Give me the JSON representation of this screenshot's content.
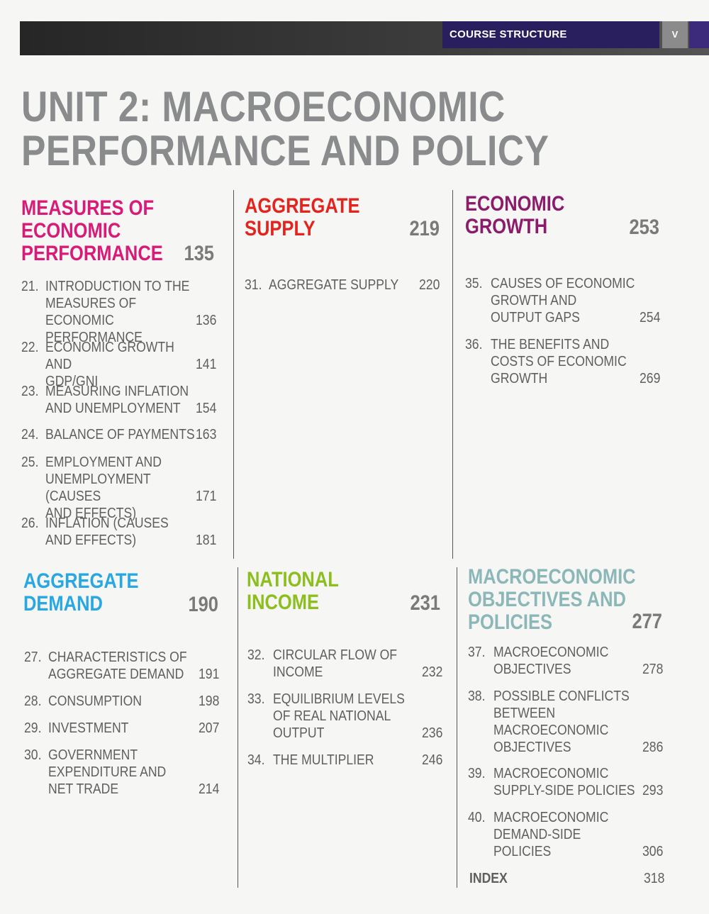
{
  "header": {
    "section_label": "COURSE STRUCTURE",
    "page_roman": "V"
  },
  "unit_title": {
    "line1": "UNIT 2: MACROECONOMIC",
    "line2": "PERFORMANCE AND POLICY"
  },
  "colors": {
    "measures": "#d81b78",
    "supply": "#e3241e",
    "growth": "#8a1c6b",
    "demand": "#29a7e0",
    "income": "#8cbf1e",
    "objectives": "#8bb7b9"
  },
  "sections": {
    "measures": {
      "title_lines": [
        "MEASURES OF",
        "ECONOMIC",
        "PERFORMANCE"
      ],
      "page": "135",
      "entries": [
        {
          "num": "21.",
          "text": "INTRODUCTION TO THE\nMEASURES OF ECONOMIC\nPERFORMANCE",
          "page": "136"
        },
        {
          "num": "22.",
          "text": "ECONOMIC GROWTH AND\nGDP/GNI",
          "page": "141"
        },
        {
          "num": "23.",
          "text": "MEASURING INFLATION\nAND UNEMPLOYMENT",
          "page": "154"
        },
        {
          "num": "24.",
          "text": "BALANCE OF PAYMENTS",
          "page": "163"
        },
        {
          "num": "25.",
          "text": "EMPLOYMENT AND\nUNEMPLOYMENT (CAUSES\nAND EFFECTS)",
          "page": "171"
        },
        {
          "num": "26.",
          "text": "INFLATION (CAUSES\nAND EFFECTS)",
          "page": "181"
        }
      ]
    },
    "supply": {
      "title_lines": [
        "AGGREGATE",
        "SUPPLY"
      ],
      "page": "219",
      "entries": [
        {
          "num": "31.",
          "text": "AGGREGATE SUPPLY",
          "page": "220"
        }
      ]
    },
    "growth": {
      "title_lines": [
        "ECONOMIC",
        "GROWTH"
      ],
      "page": "253",
      "entries": [
        {
          "num": "35.",
          "text": "CAUSES OF ECONOMIC\nGROWTH AND\nOUTPUT GAPS",
          "page": "254"
        },
        {
          "num": "36.",
          "text": "THE BENEFITS AND\nCOSTS OF ECONOMIC\nGROWTH",
          "page": "269"
        }
      ]
    },
    "demand": {
      "title_lines": [
        "AGGREGATE",
        "DEMAND"
      ],
      "page": "190",
      "entries": [
        {
          "num": "27.",
          "text": "CHARACTERISTICS OF\nAGGREGATE DEMAND",
          "page": "191"
        },
        {
          "num": "28.",
          "text": "CONSUMPTION",
          "page": "198"
        },
        {
          "num": "29.",
          "text": "INVESTMENT",
          "page": "207"
        },
        {
          "num": "30.",
          "text": "GOVERNMENT\nEXPENDITURE AND\nNET TRADE",
          "page": "214"
        }
      ]
    },
    "income": {
      "title_lines": [
        "NATIONAL",
        "INCOME"
      ],
      "page": "231",
      "entries": [
        {
          "num": "32.",
          "text": "CIRCULAR FLOW OF\nINCOME",
          "page": "232"
        },
        {
          "num": "33.",
          "text": "EQUILIBRIUM LEVELS\nOF REAL NATIONAL\nOUTPUT",
          "page": "236"
        },
        {
          "num": "34.",
          "text": "THE MULTIPLIER",
          "page": "246"
        }
      ]
    },
    "objectives": {
      "title_lines": [
        "MACROECONOMIC",
        "OBJECTIVES AND",
        "POLICIES"
      ],
      "page": "277",
      "entries": [
        {
          "num": "37.",
          "text": "MACROECONOMIC\nOBJECTIVES",
          "page": "278"
        },
        {
          "num": "38.",
          "text": "POSSIBLE CONFLICTS\nBETWEEN\nMACROECONOMIC\nOBJECTIVES",
          "page": "286"
        },
        {
          "num": "39.",
          "text": "MACROECONOMIC\nSUPPLY-SIDE POLICIES",
          "page": "293"
        },
        {
          "num": "40.",
          "text": "MACROECONOMIC\nDEMAND-SIDE\nPOLICIES",
          "page": "306"
        }
      ]
    },
    "index": {
      "label": "INDEX",
      "page": "318"
    }
  }
}
